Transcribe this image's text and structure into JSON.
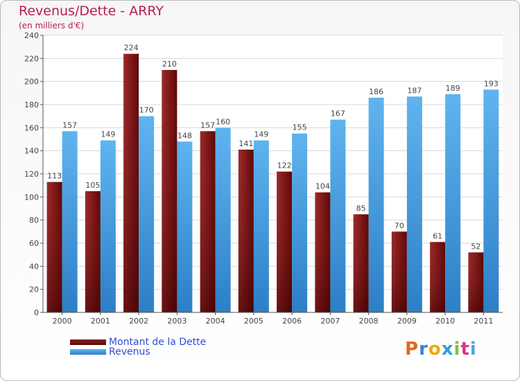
{
  "header": {
    "title": "Revenus/Dette - ARRY",
    "subtitle": "(en milliers d'€)"
  },
  "legend": {
    "items": [
      {
        "label": "Montant de la Dette",
        "color": "#7a1414"
      },
      {
        "label": "Revenus",
        "color": "#4ea8e8"
      }
    ]
  },
  "brand": {
    "text": "Proxiti",
    "letters": [
      "P",
      "r",
      "o",
      "x",
      "i",
      "t",
      "i"
    ]
  },
  "chart_data": {
    "type": "bar",
    "title": "Revenus/Dette - ARRY",
    "subtitle": "(en milliers d'€)",
    "categories": [
      "2000",
      "2001",
      "2002",
      "2003",
      "2004",
      "2005",
      "2006",
      "2007",
      "2008",
      "2009",
      "2010",
      "2011"
    ],
    "series": [
      {
        "name": "Montant de la Dette",
        "color": "#7a1414",
        "values": [
          113,
          105,
          224,
          210,
          157,
          141,
          122,
          104,
          85,
          70,
          61,
          52
        ]
      },
      {
        "name": "Revenus",
        "color": "#4ea8e8",
        "values": [
          157,
          149,
          170,
          148,
          160,
          149,
          155,
          167,
          186,
          187,
          189,
          193
        ]
      }
    ],
    "yticks": [
      0,
      20,
      40,
      60,
      80,
      100,
      120,
      140,
      160,
      180,
      200,
      220,
      240
    ],
    "ylim": [
      0,
      240
    ],
    "grid": true,
    "legend_position": "bottom-left"
  }
}
